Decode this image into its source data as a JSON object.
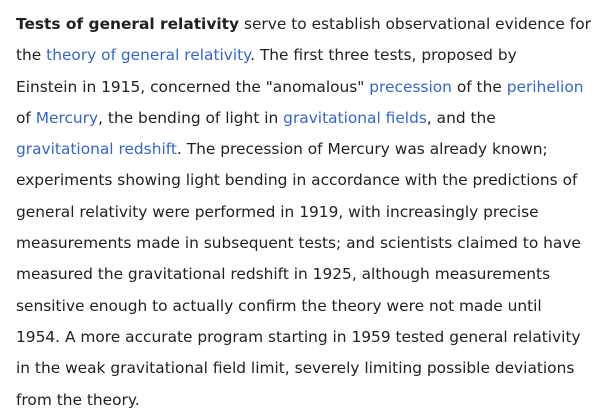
{
  "article": {
    "lines": [
      [
        {
          "type": "bold",
          "text": "Tests of general relativity"
        },
        {
          "type": "text",
          "text": " serve to establish observational evidence for"
        }
      ],
      [
        {
          "type": "text",
          "text": "the "
        },
        {
          "type": "link",
          "text": "theory of general relativity",
          "name": "link-theory-of-general-relativity"
        },
        {
          "type": "text",
          "text": ". The first three tests, proposed by"
        }
      ],
      [
        {
          "type": "text",
          "text": "Einstein in 1915, concerned the \"anomalous\" "
        },
        {
          "type": "link",
          "text": "precession",
          "name": "link-precession"
        },
        {
          "type": "text",
          "text": " of the "
        },
        {
          "type": "link",
          "text": "perihelion",
          "name": "link-perihelion"
        }
      ],
      [
        {
          "type": "text",
          "text": "of "
        },
        {
          "type": "link",
          "text": "Mercury",
          "name": "link-mercury"
        },
        {
          "type": "text",
          "text": ", the bending of light in "
        },
        {
          "type": "link",
          "text": "gravitational fields",
          "name": "link-gravitational-fields"
        },
        {
          "type": "text",
          "text": ", and the"
        }
      ],
      [
        {
          "type": "link",
          "text": "gravitational redshift",
          "name": "link-gravitational-redshift"
        },
        {
          "type": "text",
          "text": ". The precession of Mercury was already known;"
        }
      ],
      [
        {
          "type": "text",
          "text": "experiments showing light bending in accordance with the predictions of"
        }
      ],
      [
        {
          "type": "text",
          "text": "general relativity were performed in 1919, with increasingly precise"
        }
      ],
      [
        {
          "type": "text",
          "text": "measurements made in subsequent tests; and scientists claimed to have"
        }
      ],
      [
        {
          "type": "text",
          "text": "measured the gravitational redshift in 1925, although measurements"
        }
      ],
      [
        {
          "type": "text",
          "text": "sensitive enough to actually confirm the theory were not made until"
        }
      ],
      [
        {
          "type": "text",
          "text": "1954. A more accurate program starting in 1959 tested general relativity"
        }
      ],
      [
        {
          "type": "text",
          "text": "in the weak gravitational field limit, severely limiting possible deviations"
        }
      ],
      [
        {
          "type": "text",
          "text": "from the theory."
        }
      ]
    ]
  },
  "colors": {
    "text": "#202122",
    "link": "#3366cc",
    "background": "#ffffff"
  }
}
